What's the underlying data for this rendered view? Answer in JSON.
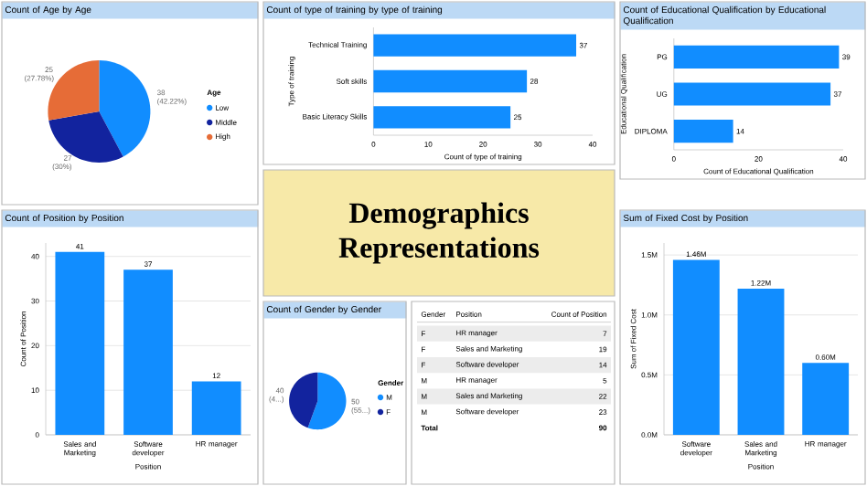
{
  "chart_data": [
    {
      "type": "pie",
      "title": "Count of Age by Age",
      "legend_title": "Age",
      "categories": [
        "Low",
        "Middle",
        "High"
      ],
      "values": [
        38,
        27,
        25
      ],
      "colors": [
        "#118dff",
        "#12239e",
        "#e66c37"
      ],
      "value_labels": [
        "38 (42.22%)",
        "27 (30%)",
        "25 (27.78%)"
      ],
      "legend": "right"
    },
    {
      "type": "bar",
      "orientation": "horizontal",
      "title": "Count of type of training by type of training",
      "xlabel": "Count of type of training",
      "ylabel": "Type of training",
      "categories": [
        "Technical Training",
        "Soft skills",
        "Basic Literacy Skills"
      ],
      "values": [
        37,
        28,
        25
      ],
      "color": "#118dff",
      "xlim": [
        0,
        40
      ],
      "xticks": [
        0,
        10,
        20,
        30,
        40
      ],
      "data_labels": true
    },
    {
      "type": "bar",
      "orientation": "horizontal",
      "title": "Count of Educational Qualification by Educational Qualification",
      "xlabel": "Count of Educational Qualification",
      "ylabel": "Educational Qualification",
      "categories": [
        "PG",
        "UG",
        "DIPLOMA"
      ],
      "values": [
        39,
        37,
        14
      ],
      "color": "#118dff",
      "xlim": [
        0,
        40
      ],
      "xticks": [
        0,
        20,
        40
      ],
      "data_labels": true
    },
    {
      "type": "bar",
      "title": "Count of Position by Position",
      "xlabel": "Position",
      "ylabel": "Count of Position",
      "categories": [
        "Sales and Marketing",
        "Software developer",
        "HR manager"
      ],
      "values": [
        41,
        37,
        12
      ],
      "color": "#118dff",
      "ylim": [
        0,
        43
      ],
      "yticks": [
        0,
        10,
        20,
        30,
        40
      ],
      "grid": "y",
      "data_labels": true
    },
    {
      "type": "other",
      "title": "Demographics Representations"
    },
    {
      "type": "bar",
      "title": "Sum of Fixed Cost by Position",
      "xlabel": "Position",
      "ylabel": "Sum of Fixed Cost",
      "categories": [
        "Software developer",
        "Sales and Marketing",
        "HR manager"
      ],
      "values": [
        1.46,
        1.22,
        0.6
      ],
      "value_labels": [
        "1.46M",
        "1.22M",
        "0.60M"
      ],
      "color": "#118dff",
      "ylim": [
        0,
        1.6
      ],
      "yticks": [
        {
          "value": 0,
          "label": "0.0M"
        },
        {
          "value": 0.5,
          "label": "0.5M"
        },
        {
          "value": 1.0,
          "label": "1.0M"
        },
        {
          "value": 1.5,
          "label": "1.5M"
        }
      ],
      "grid": "y"
    },
    {
      "type": "pie",
      "title": "Count of Gender by Gender",
      "legend_title": "Gender",
      "categories": [
        "M",
        "F"
      ],
      "values": [
        50,
        40
      ],
      "colors": [
        "#118dff",
        "#12239e"
      ],
      "value_labels": [
        "50 (55...)",
        "40 (4...)"
      ],
      "legend": "right"
    },
    {
      "type": "other",
      "annotations": [
        "Gender",
        "Position",
        "Count of Position",
        "F",
        "HR manager",
        "7",
        "F",
        "Sales and Marketing",
        "19",
        "F",
        "Software developer",
        "14",
        "M",
        "HR manager",
        "5",
        "M",
        "Sales and Marketing",
        "22",
        "M",
        "Software developer",
        "23",
        "Total",
        "90"
      ]
    }
  ]
}
